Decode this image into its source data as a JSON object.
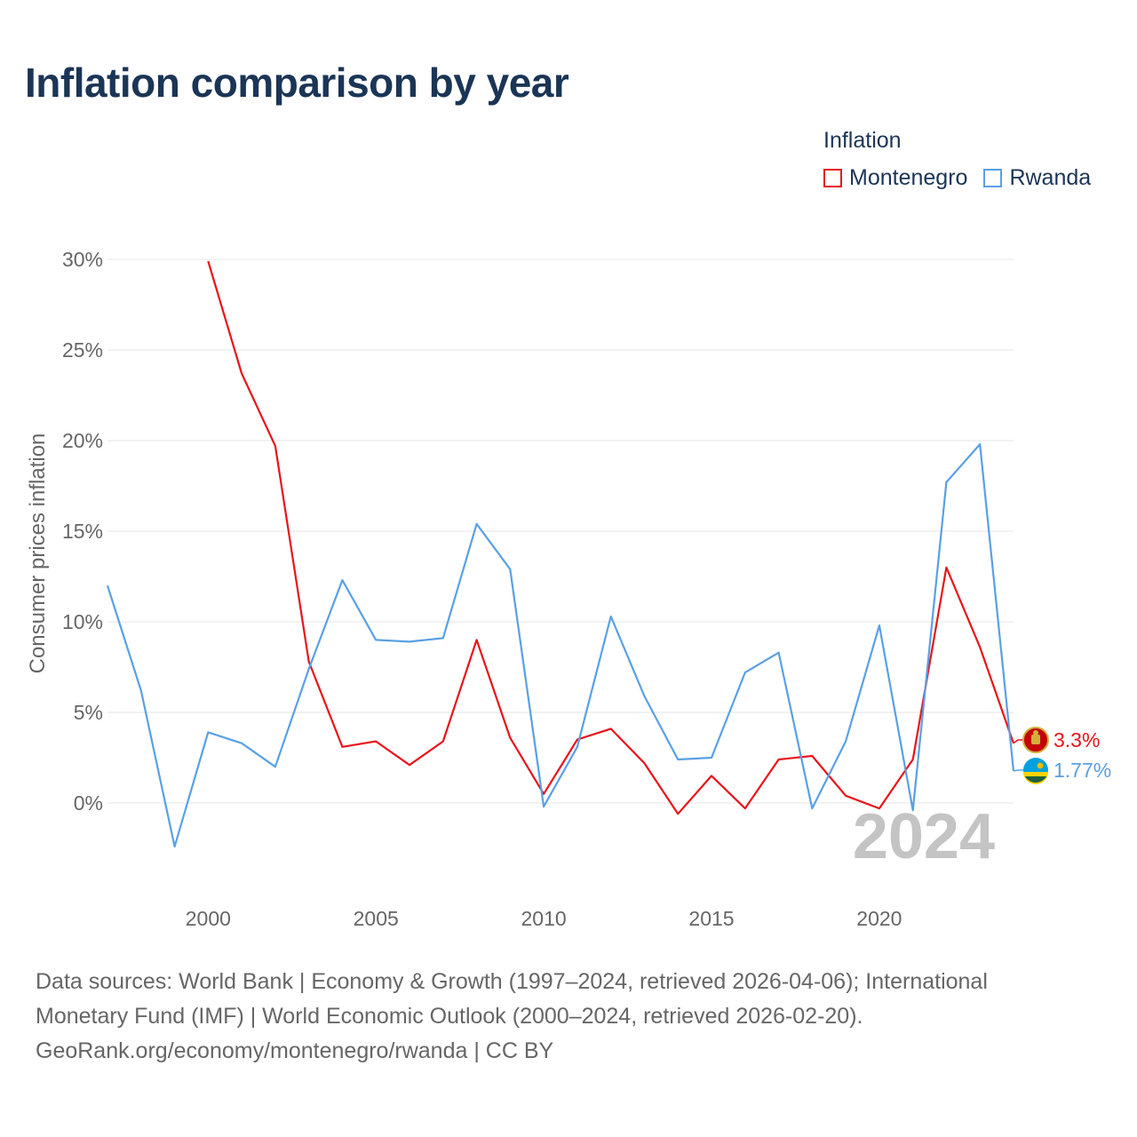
{
  "header": {
    "title": "Inflation comparison by year"
  },
  "legend": {
    "title": "Inflation",
    "items": [
      {
        "label": "Montenegro",
        "color": "#e8141b"
      },
      {
        "label": "Rwanda",
        "color": "#5aa0e4"
      }
    ]
  },
  "chart_data": {
    "type": "line",
    "title": "Inflation comparison by year",
    "xlabel": "",
    "ylabel": "Consumer prices inflation",
    "xlim": [
      1997,
      2024
    ],
    "ylim": [
      -5,
      30
    ],
    "yticks": [
      0,
      5,
      10,
      15,
      20,
      25,
      30
    ],
    "ytick_labels": [
      "0%",
      "5%",
      "10%",
      "15%",
      "20%",
      "25%",
      "30%"
    ],
    "xticks": [
      2000,
      2005,
      2010,
      2015,
      2020
    ],
    "xtick_labels": [
      "2000",
      "2005",
      "2010",
      "2015",
      "2020"
    ],
    "grid": true,
    "year_watermark": "2024",
    "series": [
      {
        "name": "Montenegro",
        "color": "#e8141b",
        "end_label": "3.3%",
        "flag_icon": "montenegro-flag-icon",
        "x": [
          2000,
          2001,
          2002,
          2003,
          2004,
          2005,
          2006,
          2007,
          2008,
          2009,
          2010,
          2011,
          2012,
          2013,
          2014,
          2015,
          2016,
          2017,
          2018,
          2019,
          2020,
          2021,
          2022,
          2023,
          2024
        ],
        "values": [
          29.9,
          23.7,
          19.7,
          7.8,
          3.1,
          3.4,
          2.1,
          3.4,
          9.0,
          3.6,
          0.5,
          3.5,
          4.1,
          2.2,
          -0.6,
          1.5,
          -0.3,
          2.4,
          2.6,
          0.4,
          -0.3,
          2.4,
          13.0,
          8.6,
          3.3
        ]
      },
      {
        "name": "Rwanda",
        "color": "#5aa0e4",
        "end_label": "1.77%",
        "flag_icon": "rwanda-flag-icon",
        "x": [
          1997,
          1998,
          1999,
          2000,
          2001,
          2002,
          2003,
          2004,
          2005,
          2006,
          2007,
          2008,
          2009,
          2010,
          2011,
          2012,
          2013,
          2014,
          2015,
          2016,
          2017,
          2018,
          2019,
          2020,
          2021,
          2022,
          2023,
          2024
        ],
        "values": [
          12.0,
          6.2,
          -2.4,
          3.9,
          3.3,
          2.0,
          7.4,
          12.3,
          9.0,
          8.9,
          9.1,
          15.4,
          12.9,
          -0.2,
          3.1,
          10.3,
          5.9,
          2.4,
          2.5,
          7.2,
          8.3,
          -0.3,
          3.4,
          9.8,
          -0.4,
          17.7,
          19.8,
          1.77
        ]
      }
    ]
  },
  "source": {
    "line1": "Data sources: World Bank | Economy & Growth (1997–2024, retrieved 2026-04-06); International",
    "line2": "Monetary Fund (IMF) | World Economic Outlook (2000–2024, retrieved 2026-02-20).",
    "line3": "GeoRank.org/economy/montenegro/rwanda | CC BY"
  }
}
